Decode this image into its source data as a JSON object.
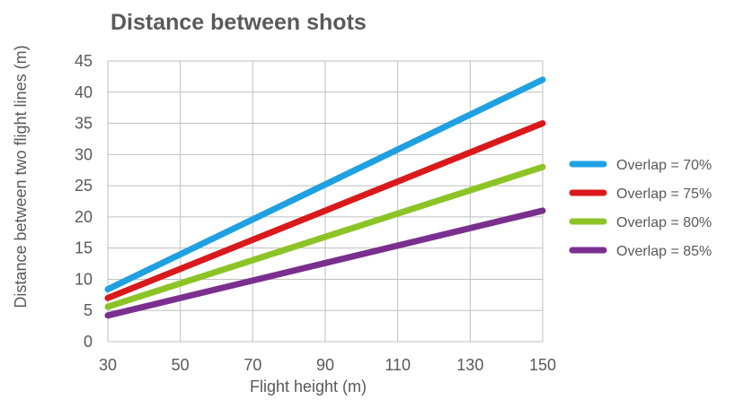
{
  "chart_data": {
    "type": "line",
    "title": "Distance between shots",
    "xlabel": "Flight height (m)",
    "ylabel": "Distance between two flight lines (m)",
    "xlim": [
      30,
      150
    ],
    "ylim": [
      0,
      45
    ],
    "xticks": [
      30,
      50,
      70,
      90,
      110,
      130,
      150
    ],
    "yticks": [
      0,
      5,
      10,
      15,
      20,
      25,
      30,
      35,
      40,
      45
    ],
    "grid": true,
    "legend_position": "right",
    "series": [
      {
        "name": "Overlap = 70%",
        "color": "#1fa0e0",
        "x": [
          30,
          150
        ],
        "y": [
          8.4,
          42.0
        ]
      },
      {
        "name": "Overlap = 75%",
        "color": "#d9191c",
        "x": [
          30,
          150
        ],
        "y": [
          7.0,
          35.0
        ]
      },
      {
        "name": "Overlap = 80%",
        "color": "#8cc427",
        "x": [
          30,
          150
        ],
        "y": [
          5.6,
          28.0
        ]
      },
      {
        "name": "Overlap = 85%",
        "color": "#7a2f8f",
        "x": [
          30,
          150
        ],
        "y": [
          4.2,
          21.0
        ]
      }
    ]
  }
}
